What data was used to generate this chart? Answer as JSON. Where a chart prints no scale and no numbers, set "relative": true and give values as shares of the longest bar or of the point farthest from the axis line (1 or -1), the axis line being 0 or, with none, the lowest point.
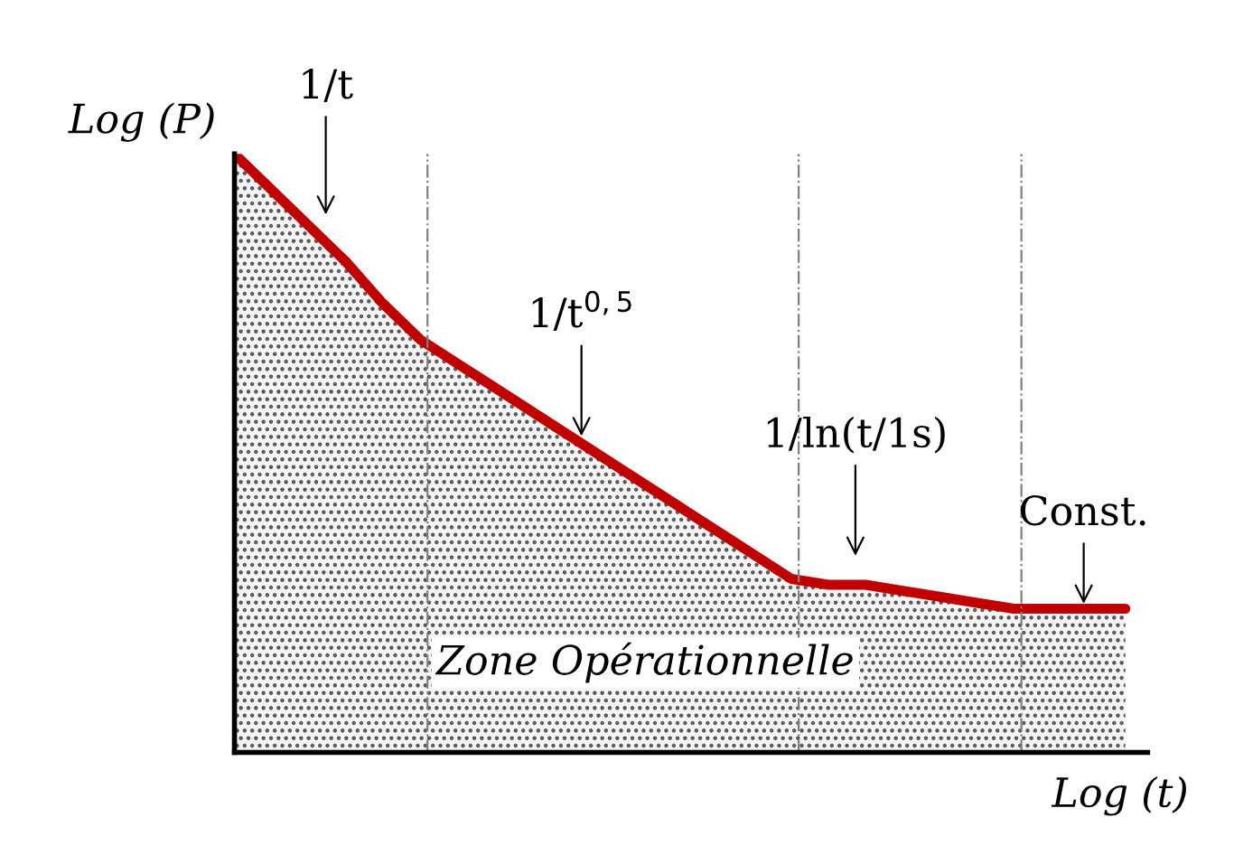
{
  "chart_data": {
    "type": "area",
    "relative": true,
    "xlabel": "Log (t)",
    "ylabel": "Log (P)",
    "line_style": "solid",
    "marker": "none",
    "categories": [
      null,
      null,
      null,
      null,
      null,
      null,
      null,
      null,
      null,
      null,
      null,
      null,
      null,
      null,
      null,
      null,
      null,
      null,
      null,
      null,
      null,
      null,
      null,
      null,
      null
    ],
    "series": [
      {
        "color": "#c00000",
        "values": [
          1,
          0.94,
          0.88,
          0.82,
          0.75,
          0.69,
          0.65,
          0.61,
          0.57,
          0.53,
          0.49,
          0.45,
          0.41,
          0.37,
          0.33,
          0.29,
          0.28,
          0.28,
          0.27,
          0.26,
          0.25,
          0.24,
          0.24,
          0.24,
          0.24
        ]
      }
    ],
    "annotations": [
      "1/t",
      "1/t$^{0,5}$",
      "1/ln(t/1s)",
      "Const.",
      "Zone Opérationnelle"
    ]
  }
}
